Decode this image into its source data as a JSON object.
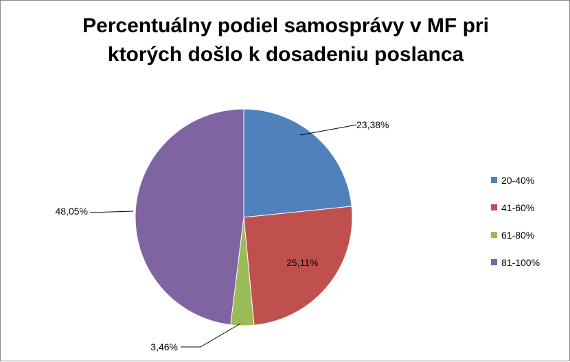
{
  "chart_data": {
    "type": "pie",
    "title_lines": [
      "Percentuálny podiel samosprávy v MF pri",
      "ktorých došlo k dosadeniu poslanca"
    ],
    "categories": [
      "20-40%",
      "41-60%",
      "61-80%",
      "81-100%"
    ],
    "values": [
      23.38,
      25.11,
      3.46,
      48.05
    ],
    "data_labels": [
      "23,38%",
      "25,11%",
      "3,46%",
      "48,05%"
    ],
    "colors": [
      "#4f81bd",
      "#c0504d",
      "#9bbb59",
      "#8064a2"
    ],
    "legend_position": "right"
  }
}
